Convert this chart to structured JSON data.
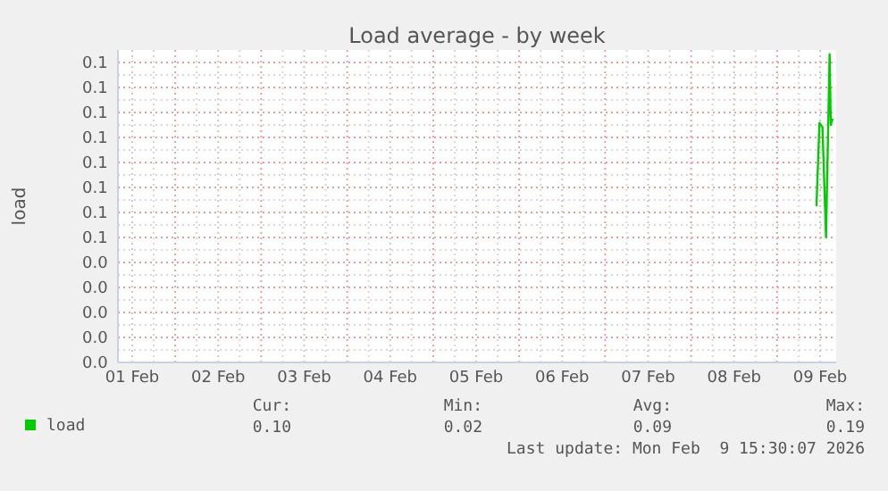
{
  "chart_data": {
    "type": "line",
    "title": "Load average - by week",
    "ylabel": "load",
    "x": [
      "2026-02-09T11:00",
      "2026-02-09T11:50",
      "2026-02-09T12:40",
      "2026-02-09T13:40",
      "2026-02-09T14:40",
      "2026-02-09T15:00",
      "2026-02-09T15:30"
    ],
    "series": [
      {
        "name": "load",
        "color": "#00cc00",
        "values": [
          0.075,
          0.115,
          0.113,
          0.06,
          0.148,
          0.114,
          0.117
        ]
      }
    ],
    "xlim": [
      "2026-02-01T08:00",
      "2026-02-09T16:30"
    ],
    "xticks": [
      {
        "value": "2026-02-01T12:00",
        "label": "01 Feb"
      },
      {
        "value": "2026-02-02T00:00",
        "label": null
      },
      {
        "value": "2026-02-02T12:00",
        "label": "02 Feb"
      },
      {
        "value": "2026-02-03T00:00",
        "label": null
      },
      {
        "value": "2026-02-03T12:00",
        "label": "03 Feb"
      },
      {
        "value": "2026-02-04T00:00",
        "label": null
      },
      {
        "value": "2026-02-04T12:00",
        "label": "04 Feb"
      },
      {
        "value": "2026-02-05T00:00",
        "label": null
      },
      {
        "value": "2026-02-05T12:00",
        "label": "05 Feb"
      },
      {
        "value": "2026-02-06T00:00",
        "label": null
      },
      {
        "value": "2026-02-06T12:00",
        "label": "06 Feb"
      },
      {
        "value": "2026-02-07T00:00",
        "label": null
      },
      {
        "value": "2026-02-07T12:00",
        "label": "07 Feb"
      },
      {
        "value": "2026-02-08T00:00",
        "label": null
      },
      {
        "value": "2026-02-08T12:00",
        "label": "08 Feb"
      },
      {
        "value": "2026-02-09T00:00",
        "label": null
      },
      {
        "value": "2026-02-09T12:00",
        "label": "09 Feb"
      }
    ],
    "ylim": [
      0,
      0.15
    ],
    "yticks": [
      {
        "value": 0,
        "label": "0.0"
      },
      {
        "value": 0.012,
        "label": "0.0"
      },
      {
        "value": 0.024,
        "label": "0.0"
      },
      {
        "value": 0.036,
        "label": "0.0"
      },
      {
        "value": 0.048,
        "label": "0.0"
      },
      {
        "value": 0.06,
        "label": "0.1"
      },
      {
        "value": 0.072,
        "label": "0.1"
      },
      {
        "value": 0.084,
        "label": "0.1"
      },
      {
        "value": 0.096,
        "label": "0.1"
      },
      {
        "value": 0.108,
        "label": "0.1"
      },
      {
        "value": 0.12,
        "label": "0.1"
      },
      {
        "value": 0.132,
        "label": "0.1"
      },
      {
        "value": 0.144,
        "label": "0.1"
      }
    ],
    "grid": true,
    "legend": "bottom left",
    "annotations": [
      "Cur:",
      "Min:",
      "Avg:",
      "Max:",
      "0.10",
      "0.02",
      "0.09",
      "0.19",
      "Last update: Mon Feb  9 15:30:07 2026"
    ]
  }
}
